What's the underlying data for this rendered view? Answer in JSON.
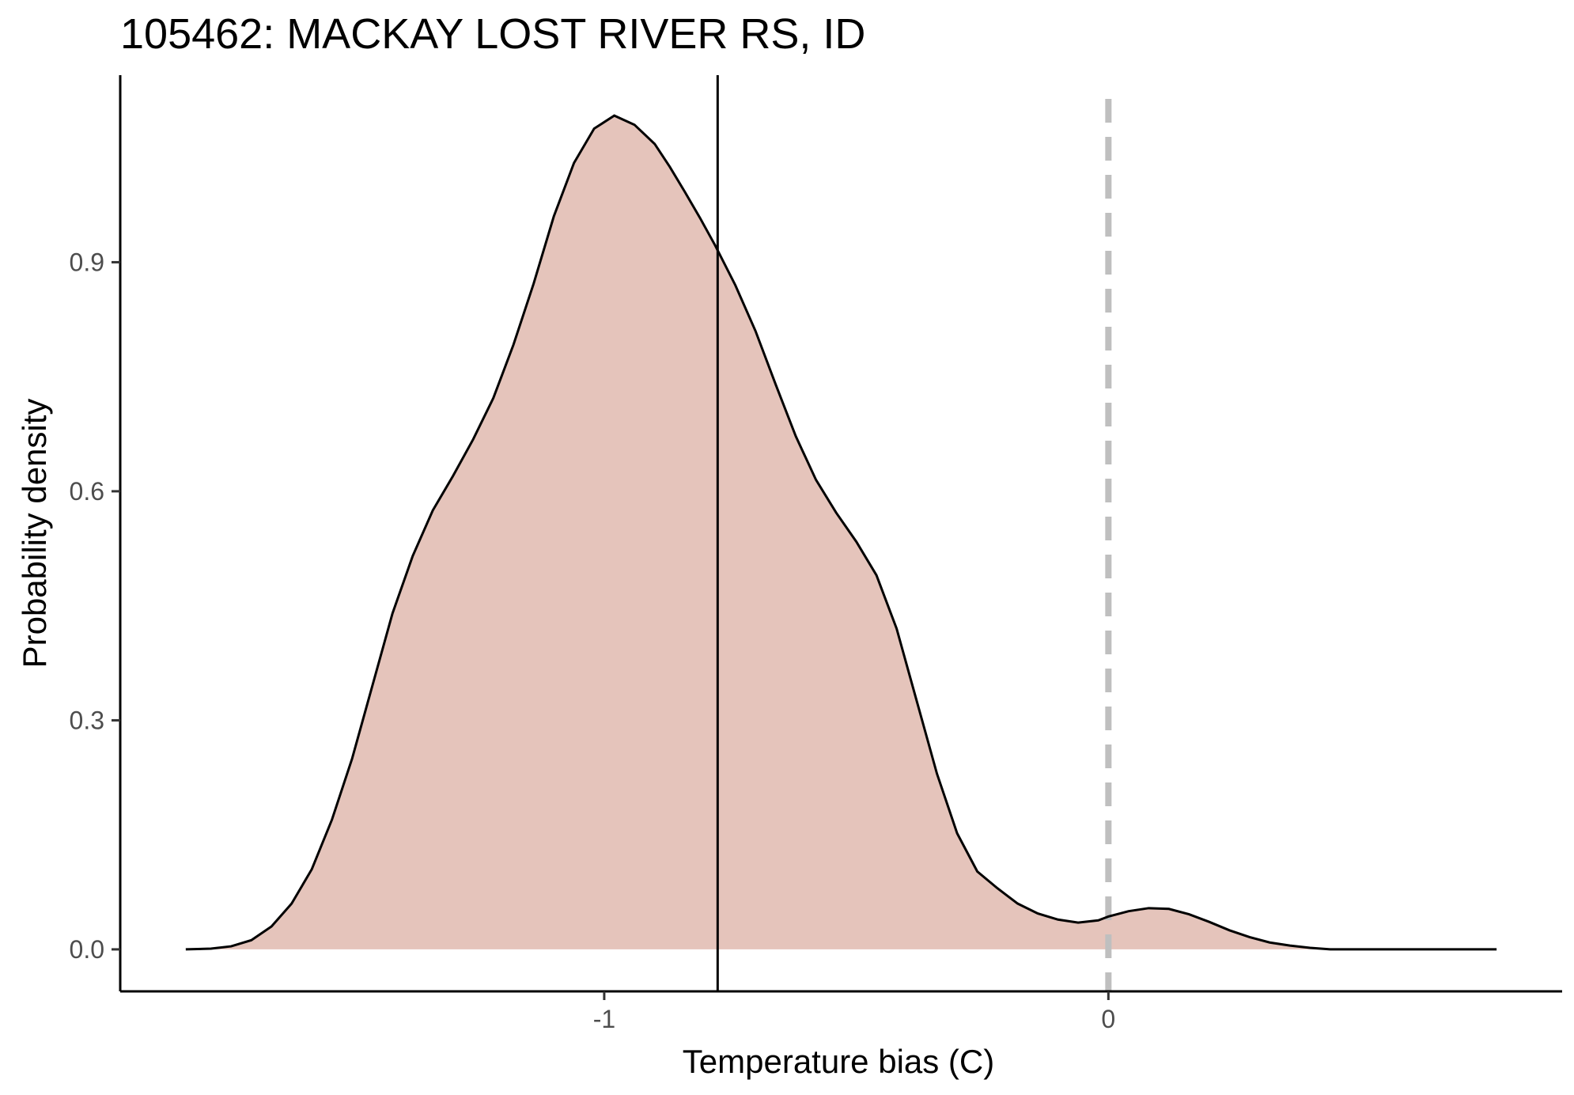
{
  "chart_data": {
    "type": "area",
    "title": "105462: MACKAY LOST RIVER RS, ID",
    "xlabel": "Temperature bias (C)",
    "ylabel": "Probability density",
    "xlim": [
      -1.96,
      0.9
    ],
    "ylim": [
      -0.055,
      1.145
    ],
    "x_ticks": [
      -1,
      0
    ],
    "x_tick_labels": [
      "-1",
      "0"
    ],
    "y_ticks": [
      0.0,
      0.3,
      0.6,
      0.9
    ],
    "y_tick_labels": [
      "0.0",
      "0.3",
      "0.6",
      "0.9"
    ],
    "grid": false,
    "legend": "none",
    "fill_color": "#e5c4bb",
    "line_color": "#000000",
    "series": [
      {
        "x": [
          -1.83,
          -1.78,
          -1.74,
          -1.7,
          -1.66,
          -1.62,
          -1.58,
          -1.54,
          -1.5,
          -1.46,
          -1.42,
          -1.38,
          -1.34,
          -1.3,
          -1.26,
          -1.22,
          -1.18,
          -1.14,
          -1.1,
          -1.06,
          -1.02,
          -0.98,
          -0.94,
          -0.9,
          -0.87,
          -0.84,
          -0.81,
          -0.78,
          -0.74,
          -0.7,
          -0.66,
          -0.62,
          -0.58,
          -0.54,
          -0.5,
          -0.46,
          -0.42,
          -0.38,
          -0.34,
          -0.3,
          -0.26,
          -0.22,
          -0.18,
          -0.14,
          -0.1,
          -0.06,
          -0.02,
          0.0,
          0.04,
          0.08,
          0.12,
          0.16,
          0.2,
          0.24,
          0.28,
          0.32,
          0.36,
          0.4,
          0.44,
          0.48,
          0.52,
          0.56,
          0.6,
          0.64,
          0.68,
          0.73,
          0.77
        ],
        "y": [
          0.0,
          0.001,
          0.004,
          0.012,
          0.03,
          0.06,
          0.105,
          0.17,
          0.25,
          0.345,
          0.44,
          0.515,
          0.575,
          0.62,
          0.668,
          0.722,
          0.792,
          0.872,
          0.96,
          1.03,
          1.075,
          1.092,
          1.08,
          1.055,
          1.025,
          0.992,
          0.958,
          0.922,
          0.87,
          0.81,
          0.74,
          0.672,
          0.615,
          0.572,
          0.534,
          0.49,
          0.42,
          0.325,
          0.23,
          0.152,
          0.102,
          0.08,
          0.06,
          0.047,
          0.039,
          0.035,
          0.038,
          0.043,
          0.05,
          0.054,
          0.053,
          0.046,
          0.036,
          0.025,
          0.016,
          0.009,
          0.005,
          0.002,
          0.0,
          0.0,
          0.0,
          0.0,
          0.0,
          0.0,
          0.0,
          0.0,
          0.0
        ]
      }
    ],
    "vline_solid": -0.775,
    "vline_dashed": 0
  }
}
